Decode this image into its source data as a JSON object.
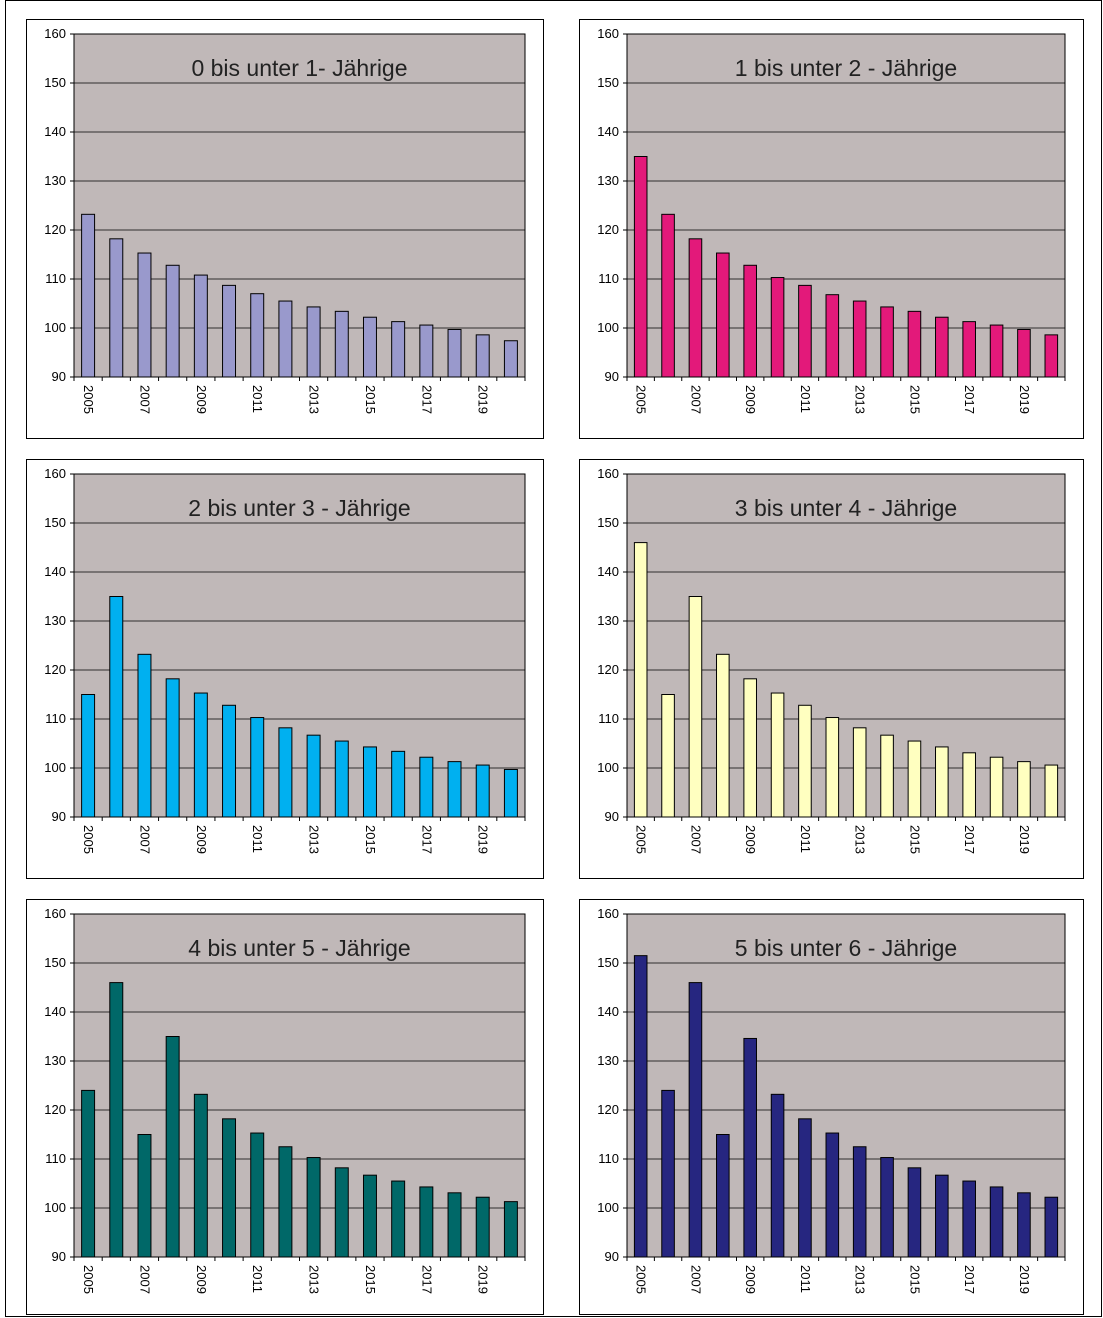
{
  "chart_data": [
    {
      "type": "bar",
      "title": "0 bis unter 1- Jährige",
      "bar_color": "#9999cc",
      "ylim": [
        90,
        160
      ],
      "yticks": [
        90,
        100,
        110,
        120,
        130,
        140,
        150,
        160
      ],
      "categories": [
        "2005",
        "2006",
        "2007",
        "2008",
        "2009",
        "2010",
        "2011",
        "2012",
        "2013",
        "2014",
        "2015",
        "2016",
        "2017",
        "2018",
        "2019",
        "2020"
      ],
      "xtick_labels": [
        "2005",
        "",
        "2007",
        "",
        "2009",
        "",
        "2011",
        "",
        "2013",
        "",
        "2015",
        "",
        "2017",
        "",
        "2019",
        ""
      ],
      "values": [
        123.2,
        118.2,
        115.3,
        112.8,
        110.8,
        108.7,
        107.0,
        105.5,
        104.3,
        103.4,
        102.2,
        101.3,
        100.6,
        99.7,
        98.6,
        97.4
      ],
      "grid": true,
      "plot_bg": "#c0b8b8"
    },
    {
      "type": "bar",
      "title": "1 bis unter 2 - Jährige",
      "bar_color": "#e3197a",
      "ylim": [
        90,
        160
      ],
      "yticks": [
        90,
        100,
        110,
        120,
        130,
        140,
        150,
        160
      ],
      "categories": [
        "2005",
        "2006",
        "2007",
        "2008",
        "2009",
        "2010",
        "2011",
        "2012",
        "2013",
        "2014",
        "2015",
        "2016",
        "2017",
        "2018",
        "2019",
        "2020"
      ],
      "xtick_labels": [
        "2005",
        "",
        "2007",
        "",
        "2009",
        "",
        "2011",
        "",
        "2013",
        "",
        "2015",
        "",
        "2017",
        "",
        "2019",
        ""
      ],
      "values": [
        135.0,
        123.2,
        118.2,
        115.3,
        112.8,
        110.3,
        108.7,
        106.8,
        105.5,
        104.3,
        103.4,
        102.2,
        101.3,
        100.6,
        99.7,
        98.6
      ],
      "grid": true,
      "plot_bg": "#c0b8b8"
    },
    {
      "type": "bar",
      "title": "2 bis unter 3 - Jährige",
      "bar_color": "#00b0f0",
      "ylim": [
        90,
        160
      ],
      "yticks": [
        90,
        100,
        110,
        120,
        130,
        140,
        150,
        160
      ],
      "categories": [
        "2005",
        "2006",
        "2007",
        "2008",
        "2009",
        "2010",
        "2011",
        "2012",
        "2013",
        "2014",
        "2015",
        "2016",
        "2017",
        "2018",
        "2019",
        "2020"
      ],
      "xtick_labels": [
        "2005",
        "",
        "2007",
        "",
        "2009",
        "",
        "2011",
        "",
        "2013",
        "",
        "2015",
        "",
        "2017",
        "",
        "2019",
        ""
      ],
      "values": [
        115.0,
        135.0,
        123.2,
        118.2,
        115.3,
        112.8,
        110.3,
        108.2,
        106.7,
        105.5,
        104.3,
        103.4,
        102.2,
        101.3,
        100.6,
        99.7
      ],
      "grid": true,
      "plot_bg": "#c0b8b8"
    },
    {
      "type": "bar",
      "title": "3 bis unter 4 - Jährige",
      "bar_color": "#ffffc0",
      "ylim": [
        90,
        160
      ],
      "yticks": [
        90,
        100,
        110,
        120,
        130,
        140,
        150,
        160
      ],
      "categories": [
        "2005",
        "2006",
        "2007",
        "2008",
        "2009",
        "2010",
        "2011",
        "2012",
        "2013",
        "2014",
        "2015",
        "2016",
        "2017",
        "2018",
        "2019",
        "2020"
      ],
      "xtick_labels": [
        "2005",
        "",
        "2007",
        "",
        "2009",
        "",
        "2011",
        "",
        "2013",
        "",
        "2015",
        "",
        "2017",
        "",
        "2019",
        ""
      ],
      "values": [
        146.0,
        115.0,
        135.0,
        123.2,
        118.2,
        115.3,
        112.8,
        110.3,
        108.2,
        106.7,
        105.5,
        104.3,
        103.1,
        102.2,
        101.3,
        100.6
      ],
      "grid": true,
      "plot_bg": "#c0b8b8"
    },
    {
      "type": "bar",
      "title": "4 bis unter 5 - Jährige",
      "bar_color": "#006868",
      "ylim": [
        90,
        160
      ],
      "yticks": [
        90,
        100,
        110,
        120,
        130,
        140,
        150,
        160
      ],
      "categories": [
        "2005",
        "2006",
        "2007",
        "2008",
        "2009",
        "2010",
        "2011",
        "2012",
        "2013",
        "2014",
        "2015",
        "2016",
        "2017",
        "2018",
        "2019",
        "2020"
      ],
      "xtick_labels": [
        "2005",
        "",
        "2007",
        "",
        "2009",
        "",
        "2011",
        "",
        "2013",
        "",
        "2015",
        "",
        "2017",
        "",
        "2019",
        ""
      ],
      "values": [
        124.0,
        146.0,
        115.0,
        135.0,
        123.2,
        118.2,
        115.3,
        112.5,
        110.3,
        108.2,
        106.7,
        105.5,
        104.3,
        103.1,
        102.2,
        101.3
      ],
      "grid": true,
      "plot_bg": "#c0b8b8"
    },
    {
      "type": "bar",
      "title": "5 bis unter 6 - Jährige",
      "bar_color": "#262680",
      "ylim": [
        90,
        160
      ],
      "yticks": [
        90,
        100,
        110,
        120,
        130,
        140,
        150,
        160
      ],
      "categories": [
        "2005",
        "2006",
        "2007",
        "2008",
        "2009",
        "2010",
        "2011",
        "2012",
        "2013",
        "2014",
        "2015",
        "2016",
        "2017",
        "2018",
        "2019",
        "2020"
      ],
      "xtick_labels": [
        "2005",
        "",
        "2007",
        "",
        "2009",
        "",
        "2011",
        "",
        "2013",
        "",
        "2015",
        "",
        "2017",
        "",
        "2019",
        ""
      ],
      "values": [
        151.5,
        124.0,
        146.0,
        115.0,
        134.6,
        123.2,
        118.2,
        115.3,
        112.5,
        110.3,
        108.2,
        106.7,
        105.5,
        104.3,
        103.1,
        102.2
      ],
      "grid": true,
      "plot_bg": "#c0b8b8"
    }
  ]
}
